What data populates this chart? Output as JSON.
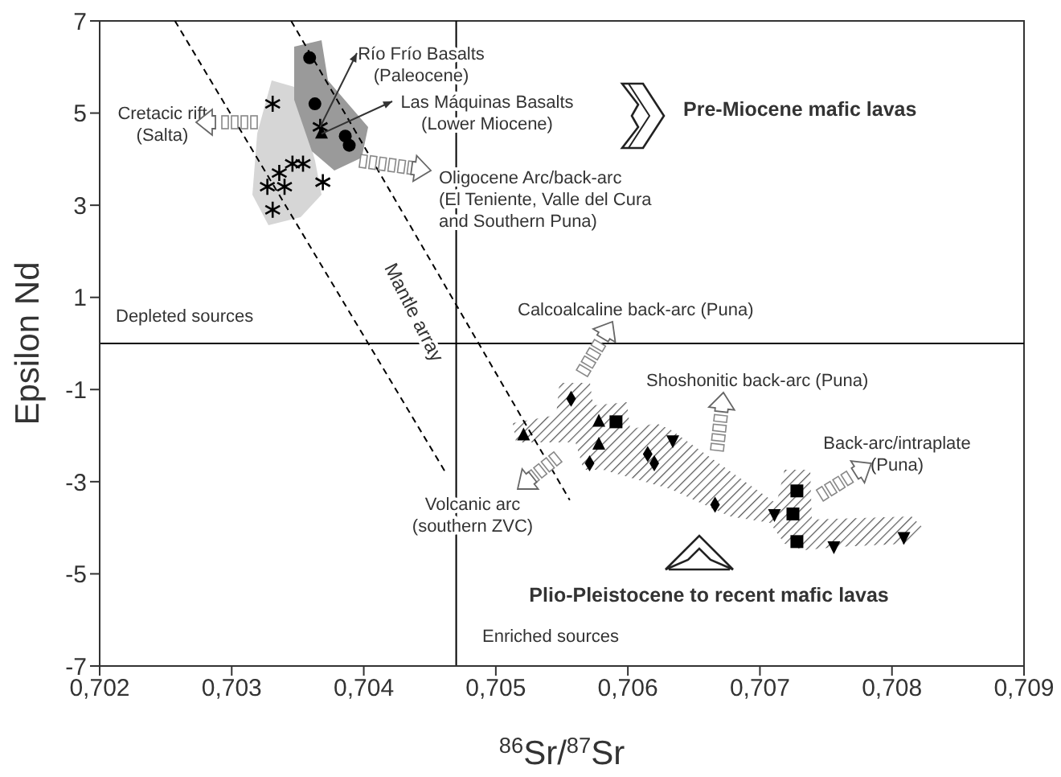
{
  "chart_data": {
    "type": "scatter",
    "xlabel": "$^{86}$Sr/$^{87}$Sr",
    "ylabel": "Epsilon Nd",
    "xlim": [
      0.702,
      0.709
    ],
    "xticks": [
      {
        "value": 0.702,
        "label": "0,702"
      },
      {
        "value": 0.703,
        "label": "0,703"
      },
      {
        "value": 0.704,
        "label": "0,704"
      },
      {
        "value": 0.705,
        "label": "0,705"
      },
      {
        "value": 0.706,
        "label": "0,706"
      },
      {
        "value": 0.707,
        "label": "0,707"
      },
      {
        "value": 0.708,
        "label": "0,708"
      },
      {
        "value": 0.709,
        "label": "0,709"
      }
    ],
    "ylim": [
      -7,
      7
    ],
    "yticks": [
      7,
      5,
      3,
      1,
      -1,
      -3,
      -5,
      -7
    ],
    "grid": false,
    "legend": false,
    "series": [
      {
        "type": "scatter",
        "marker": "circle",
        "color": "#000000",
        "x": [
          0.70359,
          0.70363,
          0.70386,
          0.70389
        ],
        "values": [
          6.2,
          5.2,
          4.5,
          4.3
        ]
      },
      {
        "type": "scatter",
        "marker": "cross",
        "color": "#000000",
        "x": [
          0.70331,
          0.70369,
          0.70327,
          0.70336,
          0.70346,
          0.70354,
          0.7034,
          0.70331
        ],
        "values": [
          5.2,
          3.5,
          3.4,
          3.7,
          3.9,
          3.9,
          3.4,
          2.9
        ]
      },
      {
        "type": "scatter",
        "marker": "cross",
        "color": "#000000",
        "x": [
          0.70367
        ],
        "values": [
          4.7
        ]
      },
      {
        "type": "scatter",
        "marker": "triangle",
        "color": "#000000",
        "x": [
          0.70368,
          0.70521,
          0.70578,
          0.70578
        ],
        "values": [
          4.55,
          -2.0,
          -1.7,
          -2.2
        ]
      },
      {
        "type": "scatter",
        "marker": "diamond",
        "color": "#000000",
        "x": [
          0.70557,
          0.70571,
          0.70615,
          0.7062,
          0.70666
        ],
        "values": [
          -1.2,
          -2.6,
          -2.4,
          -2.6,
          -3.5
        ]
      },
      {
        "type": "scatter",
        "marker": "square",
        "color": "#000000",
        "x": [
          0.70591,
          0.70728,
          0.70725,
          0.70728
        ],
        "values": [
          -1.7,
          -3.2,
          -3.7,
          -4.3
        ]
      },
      {
        "type": "scatter",
        "marker": "triangle-down",
        "color": "#000000",
        "x": [
          0.70634,
          0.70711,
          0.70756,
          0.70809
        ],
        "values": [
          -2.1,
          -3.7,
          -4.4,
          -4.2
        ]
      },
      {
        "type": "line",
        "marker": "none",
        "line_style": "dashed",
        "color": "#000000",
        "x": [
          0.70257,
          0.70463
        ],
        "values": [
          7,
          -2.85
        ]
      },
      {
        "type": "line",
        "marker": "none",
        "line_style": "dashed",
        "color": "#000000",
        "x": [
          0.70345,
          0.70556
        ],
        "values": [
          7,
          -3.4
        ]
      }
    ],
    "ref_lines": [
      {
        "axis": "x",
        "value": 0.7047,
        "color": "#000000"
      },
      {
        "axis": "y",
        "value": 0,
        "color": "#000000"
      }
    ],
    "annotations": [
      {
        "text": "Río Frío Basalts\n(Paleocene)",
        "x": 0.70367,
        "y": 4.7
      },
      {
        "text": "Las Máquinas Basalts\n(Lower Miocene)",
        "x": 0.70368,
        "y": 4.55
      },
      "Cretacic rift\n(Salta)",
      "Pre-Miocene mafic lavas",
      "Oligocene Arc/back-arc\n(El Teniente, Valle del Cura\nand Southern Puna)",
      "Mantle array",
      "Depleted sources",
      "Calcoalcaline back-arc (Puna)",
      "Shoshonitic back-arc (Puna)",
      "Back-arc/intraplate\n(Puna)",
      "Volcanic arc\n(southern ZVC)",
      "Plio-Pleistocene to recent mafic lavas",
      "Enriched sources"
    ]
  }
}
